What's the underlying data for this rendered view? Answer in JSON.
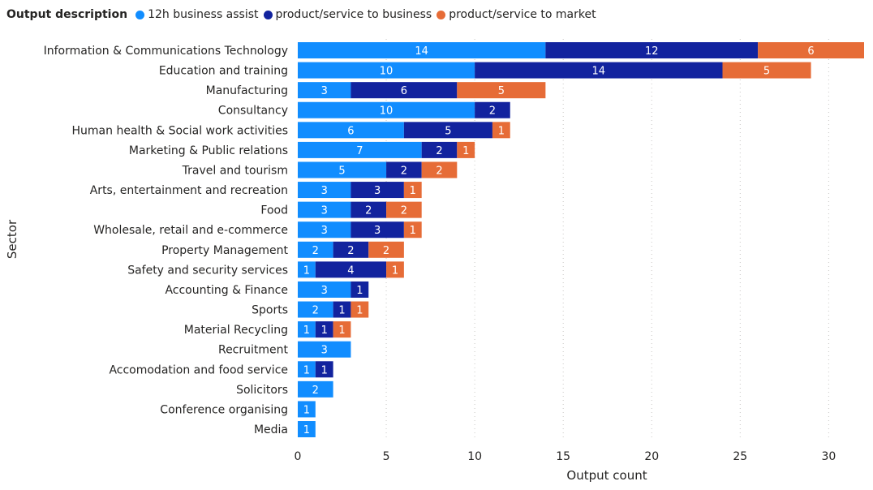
{
  "legend": {
    "title": "Output description"
  },
  "chart_data": {
    "type": "bar",
    "orientation": "horizontal",
    "stacked": true,
    "xlabel": "Output count",
    "ylabel": "Sector",
    "xlim": [
      0,
      32
    ],
    "xticks": [
      0,
      5,
      10,
      15,
      20,
      25,
      30
    ],
    "grid": true,
    "legend_position": "top-left",
    "categories": [
      "Information & Communications Technology",
      "Education and training",
      "Manufacturing",
      "Consultancy",
      "Human health & Social work activities",
      "Marketing & Public relations",
      "Travel and tourism",
      "Arts, entertainment and recreation",
      "Food",
      "Wholesale, retail and e-commerce",
      "Property Management",
      "Safety and security services",
      "Accounting & Finance",
      "Sports",
      "Material Recycling",
      "Recruitment",
      "Accomodation and food service",
      "Solicitors",
      "Conference organising",
      "Media"
    ],
    "series": [
      {
        "name": "12h business assist",
        "color": "#118DFF",
        "values": [
          14,
          10,
          3,
          10,
          6,
          7,
          5,
          3,
          3,
          3,
          2,
          1,
          3,
          2,
          1,
          3,
          1,
          2,
          1,
          1
        ]
      },
      {
        "name": "product/service to business",
        "color": "#12239E",
        "values": [
          12,
          14,
          6,
          2,
          5,
          2,
          2,
          3,
          2,
          3,
          2,
          4,
          1,
          1,
          1,
          0,
          1,
          0,
          0,
          0
        ]
      },
      {
        "name": "product/service to market",
        "color": "#E66C37",
        "values": [
          6,
          5,
          5,
          0,
          1,
          1,
          2,
          1,
          2,
          1,
          2,
          1,
          0,
          1,
          1,
          0,
          0,
          0,
          0,
          0
        ]
      }
    ]
  }
}
